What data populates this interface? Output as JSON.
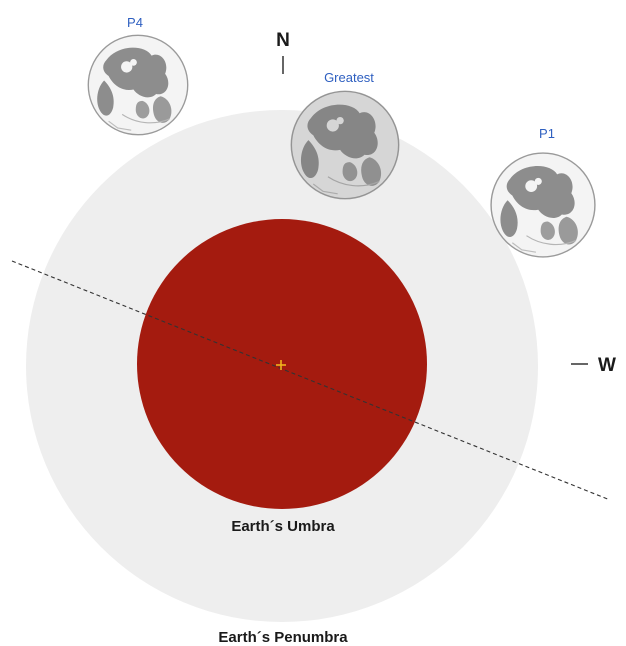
{
  "diagram": {
    "colors": {
      "penumbra": "#eeeeee",
      "umbra": "#a41b0f",
      "center_mark": "#f0b41e",
      "moon_label": "#2e5fc0",
      "moon_disk": "#f4f4f4",
      "moon_maria": "#8d8d8d"
    },
    "compass": {
      "north": "N",
      "west": "W"
    },
    "labels": {
      "umbra": "Earth´s Umbra",
      "penumbra": "Earth´s Penumbra"
    },
    "moons": [
      {
        "id": "p4",
        "label": "P4"
      },
      {
        "id": "greatest",
        "label": "Greatest"
      },
      {
        "id": "p1",
        "label": "P1"
      }
    ],
    "icons": {
      "moon": "moon-icon",
      "center": "center-plus-icon"
    }
  }
}
